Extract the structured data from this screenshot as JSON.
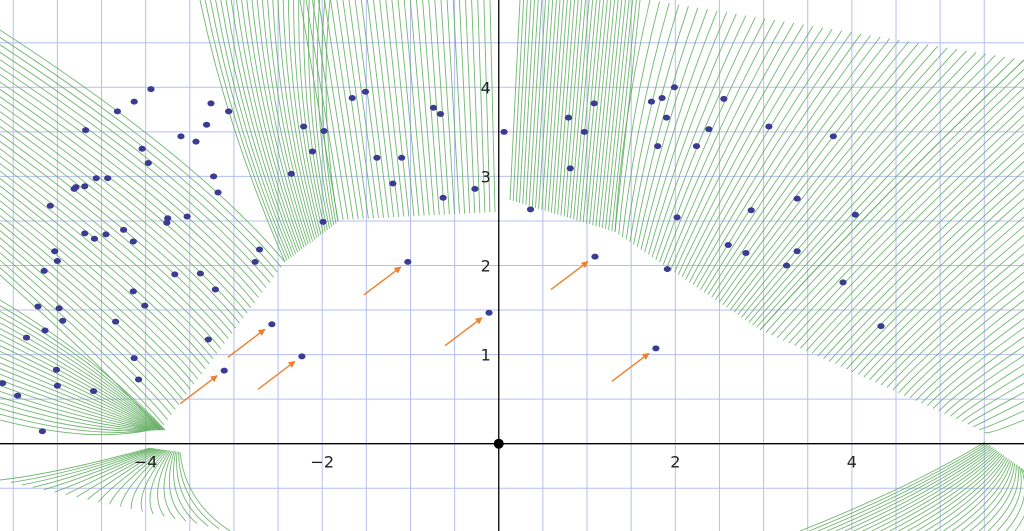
{
  "chart_data": {
    "type": "scatter",
    "title": "",
    "xlabel": "",
    "ylabel": "",
    "xlim": [
      -5.65,
      5.95
    ],
    "ylim": [
      -0.98,
      4.98
    ],
    "grid": true,
    "x_ticks": [
      {
        "value": -4,
        "label": "−4"
      },
      {
        "value": -2,
        "label": "−2"
      },
      {
        "value": 2,
        "label": "2"
      },
      {
        "value": 4,
        "label": "4"
      }
    ],
    "y_ticks": [
      {
        "value": 1,
        "label": "1"
      },
      {
        "value": 2,
        "label": "2"
      },
      {
        "value": 3,
        "label": "3"
      },
      {
        "value": 4,
        "label": "4"
      }
    ],
    "origin": {
      "x": 0,
      "y": 0
    },
    "series": [
      {
        "values": [
          [
            -4.13,
            3.84
          ],
          [
            -3.94,
            3.98
          ],
          [
            -4.32,
            3.73
          ],
          [
            -3.26,
            3.82
          ],
          [
            -3.06,
            3.73
          ],
          [
            -3.6,
            3.45
          ],
          [
            -4.04,
            3.31
          ],
          [
            -3.97,
            3.15
          ],
          [
            -3.31,
            3.58
          ],
          [
            -3.23,
            3.0
          ],
          [
            -3.43,
            3.39
          ],
          [
            -3.18,
            2.82
          ],
          [
            -4.68,
            3.52
          ],
          [
            -4.56,
            2.98
          ],
          [
            -4.69,
            2.89
          ],
          [
            -4.43,
            2.98
          ],
          [
            -4.81,
            2.86
          ],
          [
            -4.79,
            2.88
          ],
          [
            -5.08,
            2.67
          ],
          [
            -3.75,
            2.53
          ],
          [
            -3.76,
            2.48
          ],
          [
            -3.53,
            2.55
          ],
          [
            -4.14,
            2.27
          ],
          [
            -4.25,
            2.4
          ],
          [
            -4.45,
            2.35
          ],
          [
            -4.58,
            2.3
          ],
          [
            -4.69,
            2.36
          ],
          [
            -5.03,
            2.16
          ],
          [
            -5.0,
            2.05
          ],
          [
            -5.15,
            1.94
          ],
          [
            -3.67,
            1.9
          ],
          [
            -3.38,
            1.91
          ],
          [
            -3.21,
            1.73
          ],
          [
            -2.71,
            2.18
          ],
          [
            -2.76,
            2.04
          ],
          [
            -4.14,
            1.71
          ],
          [
            -4.01,
            1.55
          ],
          [
            -5.22,
            1.54
          ],
          [
            -4.98,
            1.52
          ],
          [
            -4.34,
            1.37
          ],
          [
            -4.94,
            1.38
          ],
          [
            -5.14,
            1.27
          ],
          [
            -5.35,
            1.19
          ],
          [
            -3.29,
            1.17
          ],
          [
            -4.13,
            0.96
          ],
          [
            -5.01,
            0.83
          ],
          [
            -4.08,
            0.72
          ],
          [
            -5.0,
            0.65
          ],
          [
            -4.59,
            0.59
          ],
          [
            -5.45,
            0.54
          ],
          [
            -5.62,
            0.68
          ],
          [
            -5.17,
            0.14
          ],
          [
            -2.21,
            3.56
          ],
          [
            -2.11,
            3.28
          ],
          [
            -1.98,
            3.51
          ],
          [
            -1.66,
            3.88
          ],
          [
            -1.51,
            3.95
          ],
          [
            -2.35,
            3.03
          ],
          [
            -1.38,
            3.21
          ],
          [
            -1.2,
            2.92
          ],
          [
            -1.1,
            3.21
          ],
          [
            -0.74,
            3.77
          ],
          [
            -0.66,
            3.7
          ],
          [
            -0.63,
            2.76
          ],
          [
            -0.27,
            2.86
          ],
          [
            -1.99,
            2.49
          ],
          [
            0.06,
            3.5
          ],
          [
            0.36,
            2.63
          ],
          [
            0.79,
            3.66
          ],
          [
            0.97,
            3.5
          ],
          [
            1.08,
            3.82
          ],
          [
            0.81,
            3.09
          ],
          [
            1.73,
            3.84
          ],
          [
            1.85,
            3.88
          ],
          [
            1.9,
            3.66
          ],
          [
            1.99,
            4.0
          ],
          [
            1.8,
            3.34
          ],
          [
            2.55,
            3.87
          ],
          [
            2.24,
            3.34
          ],
          [
            2.38,
            3.53
          ],
          [
            3.06,
            3.56
          ],
          [
            2.86,
            2.62
          ],
          [
            2.02,
            2.54
          ],
          [
            1.91,
            1.96
          ],
          [
            2.6,
            2.23
          ],
          [
            2.8,
            2.14
          ],
          [
            3.38,
            2.75
          ],
          [
            3.79,
            3.45
          ],
          [
            3.26,
            2.0
          ],
          [
            3.38,
            2.16
          ],
          [
            4.04,
            2.57
          ],
          [
            3.9,
            1.81
          ],
          [
            4.33,
            1.32
          ]
        ]
      },
      {
        "values": [
          [
            -3.11,
            0.82
          ],
          [
            -2.57,
            1.34
          ],
          [
            -2.23,
            0.98
          ],
          [
            -1.03,
            2.04
          ],
          [
            -0.11,
            1.47
          ],
          [
            1.09,
            2.1
          ],
          [
            1.78,
            1.07
          ]
        ]
      }
    ],
    "colors": {
      "points": "#3b3b93",
      "arrows": "#ef7f2a",
      "curves": "#5aaa5a",
      "grid": "#b6bff0",
      "axes": "#000000"
    }
  }
}
